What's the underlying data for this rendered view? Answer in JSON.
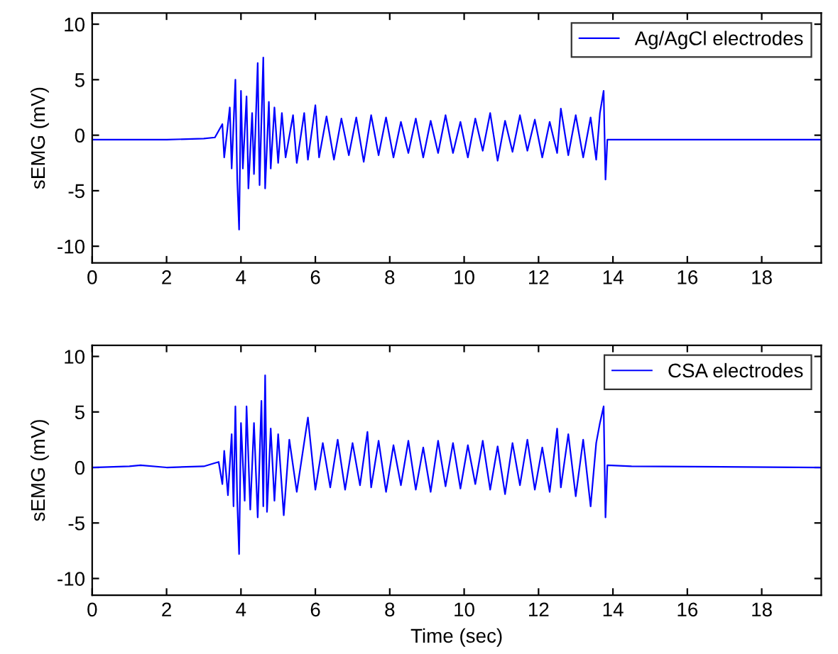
{
  "chart_data": [
    {
      "type": "line",
      "ylabel": "sEMG (mV)",
      "xlim": [
        0,
        19.6
      ],
      "ylim": [
        -11.5,
        11
      ],
      "xticks": [
        0,
        2,
        4,
        6,
        8,
        10,
        12,
        14,
        16,
        18
      ],
      "yticks": [
        -10,
        -5,
        0,
        5,
        10
      ],
      "legend": "top right",
      "grid": false,
      "series": [
        {
          "name": "Ag/AgCl electrodes",
          "color": "#0000ff",
          "x": [
            0,
            1,
            2,
            3,
            3.3,
            3.5,
            3.55,
            3.7,
            3.75,
            3.85,
            3.9,
            3.95,
            4.0,
            4.05,
            4.15,
            4.2,
            4.3,
            4.35,
            4.45,
            4.5,
            4.6,
            4.65,
            4.75,
            4.8,
            4.9,
            5.0,
            5.1,
            5.2,
            5.4,
            5.5,
            5.7,
            5.8,
            6.0,
            6.1,
            6.3,
            6.5,
            6.7,
            6.9,
            7.1,
            7.3,
            7.5,
            7.7,
            7.9,
            8.1,
            8.3,
            8.5,
            8.7,
            8.9,
            9.1,
            9.3,
            9.5,
            9.7,
            9.9,
            10.1,
            10.3,
            10.5,
            10.7,
            10.9,
            11.1,
            11.3,
            11.5,
            11.7,
            11.9,
            12.1,
            12.3,
            12.5,
            12.6,
            12.8,
            13.0,
            13.2,
            13.4,
            13.55,
            13.65,
            13.75,
            13.8,
            13.85,
            19.6
          ],
          "values": [
            -0.4,
            -0.4,
            -0.4,
            -0.3,
            -0.2,
            1,
            -2,
            2.5,
            -3,
            5,
            -4,
            -8.5,
            4,
            -3,
            3.5,
            -4.8,
            2,
            -3.5,
            6.5,
            -4.5,
            7,
            -4.8,
            3,
            -3,
            2.5,
            -2.5,
            2,
            -2,
            1.8,
            -2.5,
            2,
            -2.2,
            2.7,
            -2,
            1.7,
            -2.2,
            1.5,
            -1.8,
            1.6,
            -2.4,
            1.8,
            -1.8,
            1.6,
            -2,
            1.2,
            -1.6,
            1.5,
            -2,
            1.3,
            -1.6,
            1.8,
            -1.6,
            1.2,
            -2,
            1.5,
            -1.4,
            2,
            -2.3,
            1.3,
            -1.5,
            1.8,
            -1.4,
            1.4,
            -2,
            1.2,
            -1.6,
            2.4,
            -1.8,
            1.8,
            -2,
            1.6,
            -2.2,
            2,
            4,
            -4,
            -0.4,
            -0.4
          ]
        }
      ]
    },
    {
      "type": "line",
      "xlabel": "Time (sec)",
      "ylabel": "sEMG (mV)",
      "xlim": [
        0,
        19.6
      ],
      "ylim": [
        -11.5,
        11
      ],
      "xticks": [
        0,
        2,
        4,
        6,
        8,
        10,
        12,
        14,
        16,
        18
      ],
      "yticks": [
        -10,
        -5,
        0,
        5,
        10
      ],
      "legend": "top right",
      "grid": false,
      "series": [
        {
          "name": "CSA electrodes",
          "color": "#0000ff",
          "x": [
            0,
            1,
            1.3,
            2,
            3,
            3.3,
            3.4,
            3.5,
            3.55,
            3.65,
            3.75,
            3.8,
            3.85,
            3.9,
            3.95,
            4.0,
            4.1,
            4.15,
            4.25,
            4.35,
            4.45,
            4.55,
            4.6,
            4.65,
            4.7,
            4.8,
            4.9,
            5.0,
            5.15,
            5.3,
            5.5,
            5.8,
            6.0,
            6.2,
            6.4,
            6.6,
            6.8,
            7.0,
            7.2,
            7.4,
            7.5,
            7.7,
            7.9,
            8.1,
            8.3,
            8.5,
            8.7,
            8.9,
            9.1,
            9.3,
            9.5,
            9.7,
            9.9,
            10.1,
            10.3,
            10.5,
            10.7,
            10.9,
            11.1,
            11.3,
            11.5,
            11.7,
            11.9,
            12.1,
            12.3,
            12.5,
            12.6,
            12.8,
            13.0,
            13.2,
            13.4,
            13.55,
            13.65,
            13.75,
            13.8,
            13.85,
            14.5,
            19.6
          ],
          "values": [
            0,
            0.1,
            0.2,
            0,
            0.1,
            0.4,
            0.5,
            -1.5,
            1.5,
            -2.5,
            3,
            -3.5,
            5.5,
            -3,
            -7.8,
            4,
            -3,
            5.5,
            -3.8,
            4,
            -4.5,
            6,
            -3.5,
            8.3,
            -4,
            3.5,
            -3,
            3,
            -4.3,
            2.5,
            -2.2,
            4.5,
            -2,
            2.2,
            -1.8,
            2.5,
            -2,
            2.2,
            -1.6,
            3.2,
            -1.8,
            2.4,
            -2.2,
            2,
            -1.6,
            2.4,
            -2,
            1.8,
            -2.2,
            2.4,
            -1.7,
            2.2,
            -1.9,
            2,
            -1.5,
            2.4,
            -2,
            1.9,
            -2.4,
            2.2,
            -1.6,
            2.5,
            -2,
            1.8,
            -2.2,
            3.5,
            -1.8,
            3,
            -2.6,
            2.5,
            -3.5,
            2.2,
            4,
            5.5,
            -4.5,
            0.2,
            0.1,
            0
          ]
        }
      ]
    }
  ]
}
